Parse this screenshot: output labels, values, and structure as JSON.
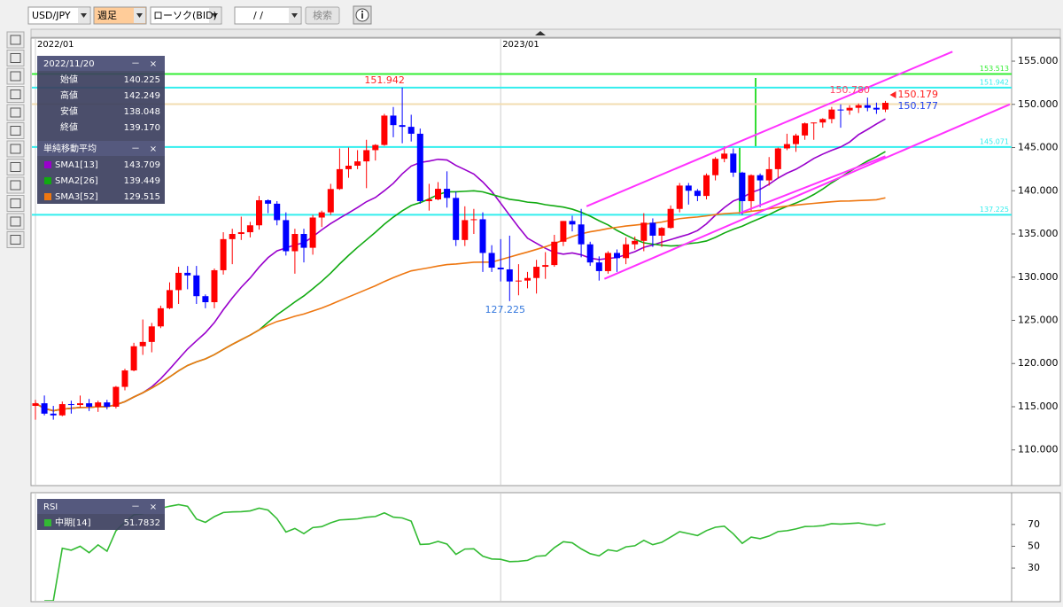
{
  "toolbar": {
    "symbol": "USD/JPY",
    "period": "週足",
    "chart_kind": "ローソク(BID)",
    "date": "/   /",
    "search": "検索"
  },
  "panel_controls": [
    "－",
    "×"
  ],
  "chart_data": [
    {
      "type": "candlestick",
      "xticks": [
        {
          "value": 0,
          "label": "2022/01"
        },
        {
          "value": 52,
          "label": "2023/01"
        }
      ],
      "ylim": [
        105.87,
        157.67
      ],
      "yticks": [
        {
          "value": 155,
          "label": "155.000"
        },
        {
          "value": 150,
          "label": "150.000"
        },
        {
          "value": 145,
          "label": "145.000"
        },
        {
          "value": 140,
          "label": "140.000"
        },
        {
          "value": 135,
          "label": "135.000"
        },
        {
          "value": 130,
          "label": "130.000"
        },
        {
          "value": 125,
          "label": "125.000"
        },
        {
          "value": 120,
          "label": "120.000"
        },
        {
          "value": 115,
          "label": "115.000"
        },
        {
          "value": 110,
          "label": "110.000"
        }
      ],
      "colors": {
        "up": "#ff0000",
        "down": "#0000ff"
      },
      "ohlc": [
        [
          115.1,
          115.8,
          113.5,
          115.4
        ],
        [
          115.4,
          116.3,
          114.0,
          114.2
        ],
        [
          114.2,
          115.1,
          113.5,
          114.0
        ],
        [
          114.0,
          115.6,
          113.9,
          115.3
        ],
        [
          115.3,
          115.7,
          114.2,
          115.2
        ],
        [
          115.2,
          116.3,
          114.9,
          115.4
        ],
        [
          115.4,
          115.9,
          114.5,
          115.0
        ],
        [
          115.0,
          115.7,
          114.4,
          115.5
        ],
        [
          115.5,
          115.8,
          114.7,
          115.0
        ],
        [
          115.0,
          117.4,
          114.8,
          117.3
        ],
        [
          117.3,
          119.4,
          116.9,
          119.2
        ],
        [
          119.2,
          122.4,
          119.1,
          122.0
        ],
        [
          122.0,
          125.1,
          121.0,
          122.5
        ],
        [
          122.5,
          124.7,
          121.3,
          124.3
        ],
        [
          124.3,
          126.7,
          124.1,
          126.4
        ],
        [
          126.4,
          129.4,
          126.3,
          128.5
        ],
        [
          128.5,
          131.2,
          126.9,
          130.5
        ],
        [
          130.5,
          131.3,
          128.6,
          130.2
        ],
        [
          130.2,
          131.3,
          126.9,
          127.8
        ],
        [
          127.8,
          128.0,
          126.4,
          127.1
        ],
        [
          127.1,
          131.0,
          126.4,
          130.8
        ],
        [
          130.8,
          135.2,
          130.3,
          134.4
        ],
        [
          134.4,
          135.6,
          131.5,
          135.0
        ],
        [
          135.0,
          137.0,
          134.3,
          135.2
        ],
        [
          135.2,
          136.4,
          134.6,
          136.0
        ],
        [
          136.0,
          139.4,
          135.5,
          138.9
        ],
        [
          138.9,
          139.0,
          137.4,
          138.5
        ],
        [
          138.5,
          138.8,
          136.0,
          136.6
        ],
        [
          136.6,
          137.5,
          132.5,
          133.0
        ],
        [
          133.0,
          135.6,
          130.4,
          135.0
        ],
        [
          135.0,
          135.6,
          131.7,
          133.4
        ],
        [
          133.4,
          137.2,
          132.6,
          136.9
        ],
        [
          136.9,
          137.7,
          135.8,
          137.5
        ],
        [
          137.5,
          140.8,
          137.2,
          140.2
        ],
        [
          140.2,
          144.9,
          140.1,
          142.5
        ],
        [
          142.5,
          145.0,
          141.5,
          142.9
        ],
        [
          142.9,
          144.7,
          142.5,
          143.4
        ],
        [
          143.4,
          145.9,
          140.3,
          144.7
        ],
        [
          144.7,
          145.4,
          143.5,
          145.3
        ],
        [
          145.3,
          148.9,
          145.2,
          148.7
        ],
        [
          148.7,
          149.7,
          146.2,
          147.6
        ],
        [
          147.6,
          151.942,
          145.5,
          147.4
        ],
        [
          147.4,
          148.8,
          145.7,
          146.6
        ],
        [
          146.6,
          147.2,
          138.5,
          138.8
        ],
        [
          138.8,
          140.8,
          137.7,
          139.0
        ],
        [
          139.0,
          141.0,
          138.9,
          140.225
        ],
        [
          140.225,
          142.249,
          138.048,
          139.17
        ],
        [
          139.17,
          139.9,
          133.6,
          134.3
        ],
        [
          134.3,
          138.2,
          133.6,
          136.6
        ],
        [
          136.6,
          137.9,
          135.0,
          136.7
        ],
        [
          136.7,
          137.5,
          130.6,
          132.8
        ],
        [
          132.8,
          133.7,
          130.6,
          131.1
        ],
        [
          131.1,
          134.4,
          129.5,
          130.9
        ],
        [
          130.9,
          134.8,
          127.225,
          129.5
        ],
        [
          129.5,
          131.5,
          127.9,
          129.6
        ],
        [
          129.6,
          130.6,
          128.7,
          129.9
        ],
        [
          129.9,
          132.0,
          128.1,
          131.2
        ],
        [
          131.2,
          132.9,
          129.8,
          131.4
        ],
        [
          131.4,
          134.9,
          131.2,
          134.1
        ],
        [
          134.1,
          136.5,
          133.6,
          136.5
        ],
        [
          136.5,
          137.1,
          135.3,
          136.1
        ],
        [
          136.1,
          137.9,
          132.3,
          133.8
        ],
        [
          133.8,
          134.1,
          131.3,
          131.7
        ],
        [
          131.7,
          132.4,
          129.6,
          130.7
        ],
        [
          130.7,
          133.0,
          130.4,
          132.8
        ],
        [
          132.8,
          133.2,
          130.6,
          132.2
        ],
        [
          132.2,
          134.6,
          131.5,
          133.8
        ],
        [
          133.8,
          134.7,
          133.2,
          134.2
        ],
        [
          134.2,
          137.4,
          133.0,
          136.3
        ],
        [
          136.3,
          136.8,
          133.5,
          134.8
        ],
        [
          134.8,
          135.8,
          133.5,
          135.7
        ],
        [
          135.7,
          138.3,
          135.6,
          137.9
        ],
        [
          137.9,
          140.9,
          137.5,
          140.6
        ],
        [
          140.6,
          140.9,
          138.4,
          140.0
        ],
        [
          140.0,
          140.2,
          138.8,
          139.4
        ],
        [
          139.4,
          142.0,
          139.0,
          141.8
        ],
        [
          141.8,
          143.9,
          141.2,
          143.7
        ],
        [
          143.7,
          145.1,
          143.3,
          144.3
        ],
        [
          144.3,
          144.9,
          141.6,
          142.1
        ],
        [
          142.1,
          142.2,
          137.2,
          138.8
        ],
        [
          138.8,
          141.9,
          137.7,
          141.8
        ],
        [
          141.8,
          142.0,
          138.1,
          141.2
        ],
        [
          141.2,
          143.9,
          140.6,
          142.5
        ],
        [
          142.5,
          145.0,
          141.5,
          144.9
        ],
        [
          144.9,
          146.6,
          144.7,
          145.4
        ],
        [
          145.4,
          146.6,
          144.5,
          146.4
        ],
        [
          146.4,
          147.9,
          145.9,
          147.8
        ],
        [
          147.8,
          147.9,
          145.9,
          147.9
        ],
        [
          147.9,
          148.4,
          147.3,
          148.3
        ],
        [
          148.3,
          149.7,
          147.8,
          149.4
        ],
        [
          149.4,
          150.0,
          147.3,
          149.3
        ],
        [
          149.3,
          149.9,
          148.8,
          149.6
        ],
        [
          149.6,
          150.1,
          149.0,
          149.9
        ],
        [
          149.9,
          150.78,
          149.2,
          149.6
        ],
        [
          149.6,
          150.2,
          148.9,
          149.4
        ],
        [
          149.4,
          150.4,
          149.1,
          150.179
        ]
      ],
      "levels": [
        {
          "value": 153.513,
          "label": "153.513",
          "color": "#33ee33"
        },
        {
          "value": 151.942,
          "label": "151.942",
          "color": "#33eeee"
        },
        {
          "value": 150.03,
          "color": "#f2dcb0"
        },
        {
          "value": 145.071,
          "label": "145.071",
          "color": "#33eeee"
        },
        {
          "value": 137.225,
          "label": "137.225",
          "color": "#33eeee"
        }
      ],
      "trendlines": [
        {
          "points": [
            [
              61.6,
              138.2
            ],
            [
              102.5,
              156.1
            ]
          ],
          "color": "#ff33ff"
        },
        {
          "points": [
            [
              63.6,
              129.8
            ],
            [
              108.9,
              150.0
            ]
          ],
          "color": "#ff33ff"
        },
        {
          "points": [
            [
              78.7,
              137.4
            ],
            [
              95.0,
              144.0
            ]
          ],
          "color": "#ff33ff"
        }
      ],
      "annotations": [
        {
          "index": 41,
          "value": 151.942,
          "label": "151.942",
          "color": "#ff2222",
          "anchor": "above"
        },
        {
          "index": 53,
          "value": 127.225,
          "label": "127.225",
          "color": "#3377dd",
          "anchor": "below"
        },
        {
          "index": 93,
          "value": 150.78,
          "label": "150.780",
          "color": "#ff4466",
          "anchor": "above"
        },
        {
          "index": 95,
          "value": 150.179,
          "label": "150.179",
          "color": "#ff2222",
          "anchor": "right"
        },
        {
          "index": 95,
          "value": 150.177,
          "label": "150.177",
          "color": "#2244ee",
          "anchor": "right-below"
        }
      ],
      "info_panel": {
        "date": "2022/11/20",
        "rows": [
          [
            "始値",
            "140.225"
          ],
          [
            "高値",
            "142.249"
          ],
          [
            "安値",
            "138.048"
          ],
          [
            "終値",
            "139.170"
          ]
        ]
      },
      "sma_panel": {
        "title": "単純移動平均",
        "items": [
          {
            "name": "SMA1[13]",
            "value": "143.709",
            "color": "#9900cc"
          },
          {
            "name": "SMA2[26]",
            "value": "139.449",
            "color": "#11aa11"
          },
          {
            "name": "SMA3[52]",
            "value": "129.515",
            "color": "#ee7711"
          }
        ]
      }
    },
    {
      "type": "rsi",
      "title": "RSI",
      "ylim": [
        0,
        97.5
      ],
      "yticks": [
        70,
        50,
        30
      ],
      "series": [
        {
          "name": "中期[14]",
          "value": "51.7832",
          "color": "#33bb33"
        }
      ]
    }
  ]
}
